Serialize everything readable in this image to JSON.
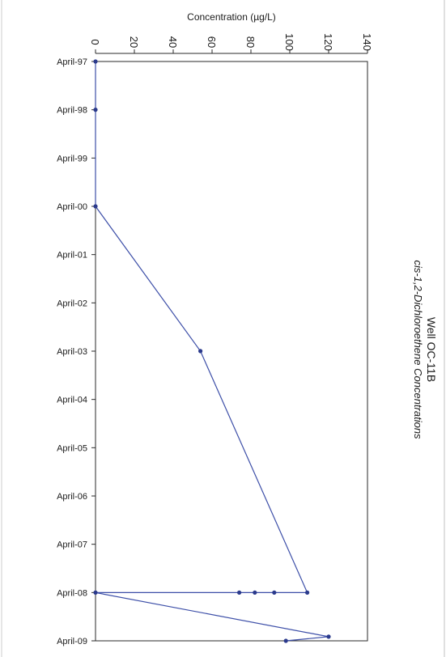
{
  "chart_data": {
    "type": "line",
    "title": "Well OC-11B",
    "subtitle": "cis-1,2-Dichloroethene Concentrations",
    "ylabel": "Concentration (µg/L)",
    "xlabel": "",
    "orientation": "rotated-90-clockwise",
    "ylim": [
      0,
      140
    ],
    "yticks": [
      "0",
      "20",
      "40",
      "60",
      "80",
      "100",
      "120",
      "140"
    ],
    "xticks": [
      "April-97",
      "April-98",
      "April-99",
      "April-00",
      "April-01",
      "April-02",
      "April-03",
      "April-04",
      "April-05",
      "April-06",
      "April-07",
      "April-08",
      "April-09"
    ],
    "xlim": [
      "1997-04-01",
      "2009-04-01"
    ],
    "grid": false,
    "legend": "none",
    "series": [
      {
        "color": "#3d4fa8",
        "x": [
          "1997-04-01",
          "1998-04-01",
          "2000-04-01",
          "2003-04-01",
          "2008-04-01",
          "2008-04-01",
          "2008-04-01",
          "2008-04-01",
          "2008-04-01",
          "2009-03-01",
          "2009-04-01"
        ],
        "y": [
          0,
          0,
          0,
          54,
          109,
          92,
          82,
          74,
          0,
          120,
          98
        ]
      }
    ]
  }
}
